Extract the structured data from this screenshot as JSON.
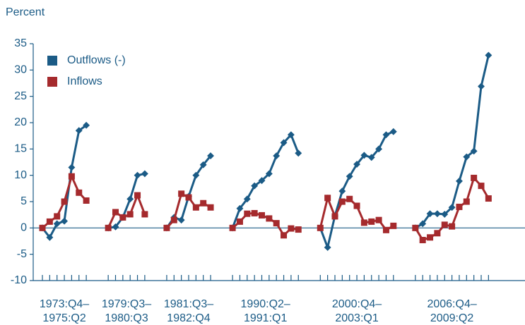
{
  "chart_data": {
    "type": "line",
    "ylabel": "Percent",
    "ylim": [
      -10,
      35
    ],
    "yticks": [
      35,
      30,
      25,
      20,
      15,
      10,
      5,
      0,
      -5,
      -10
    ],
    "legend": "upper left",
    "series": [
      {
        "name": "Outflows (-)",
        "color": "#1b5b86"
      },
      {
        "name": "Inflows",
        "color": "#a52a2d"
      }
    ],
    "episodes": [
      {
        "label": [
          "1973:Q4–",
          "1975:Q2"
        ],
        "values": [
          [
            0,
            -1.8,
            0.8,
            1.3,
            11.5,
            18.5,
            19.5
          ],
          [
            0,
            1.2,
            2.2,
            5,
            9.8,
            6.7,
            5.2
          ]
        ]
      },
      {
        "label": [
          "1979:Q3–",
          "1980:Q3"
        ],
        "values": [
          [
            0,
            0.2,
            2,
            5.5,
            10,
            10.3
          ],
          [
            0,
            3,
            2,
            2.6,
            6.2,
            2.6
          ]
        ]
      },
      {
        "label": [
          "1981:Q3–",
          "1982:Q4"
        ],
        "values": [
          [
            0,
            2,
            1.5,
            6,
            10,
            12,
            13.7
          ],
          [
            0,
            1.5,
            6.5,
            5.8,
            3.9,
            4.7,
            3.9
          ]
        ]
      },
      {
        "label": [
          "1990:Q2–",
          "1991:Q1"
        ],
        "values": [
          [
            0,
            3.7,
            5.5,
            8,
            9,
            10.3,
            13.7,
            16.2,
            17.7,
            14.2
          ],
          [
            0,
            1.2,
            2.7,
            2.8,
            2.4,
            1.8,
            0.9,
            -1.4,
            -0.1,
            -0.3
          ]
        ]
      },
      {
        "label": [
          "2000:Q4–",
          "2003:Q1"
        ],
        "values": [
          [
            0,
            -3.7,
            2.3,
            7,
            9.8,
            12.1,
            13.8,
            13.4,
            15,
            17.7,
            18.3
          ],
          [
            0,
            5.7,
            2.2,
            5,
            5.5,
            4.2,
            1,
            1.2,
            1.5,
            -0.4,
            0.4
          ]
        ]
      },
      {
        "label": [
          "2006:Q4–",
          "2009:Q2"
        ],
        "values": [
          [
            0,
            0.8,
            2.7,
            2.7,
            2.6,
            3.9,
            8.9,
            13.5,
            14.6,
            26.9,
            32.8
          ],
          [
            0,
            -2.3,
            -1.8,
            -1,
            0.6,
            0.3,
            4,
            5,
            9.5,
            8,
            5.6
          ]
        ]
      }
    ]
  }
}
